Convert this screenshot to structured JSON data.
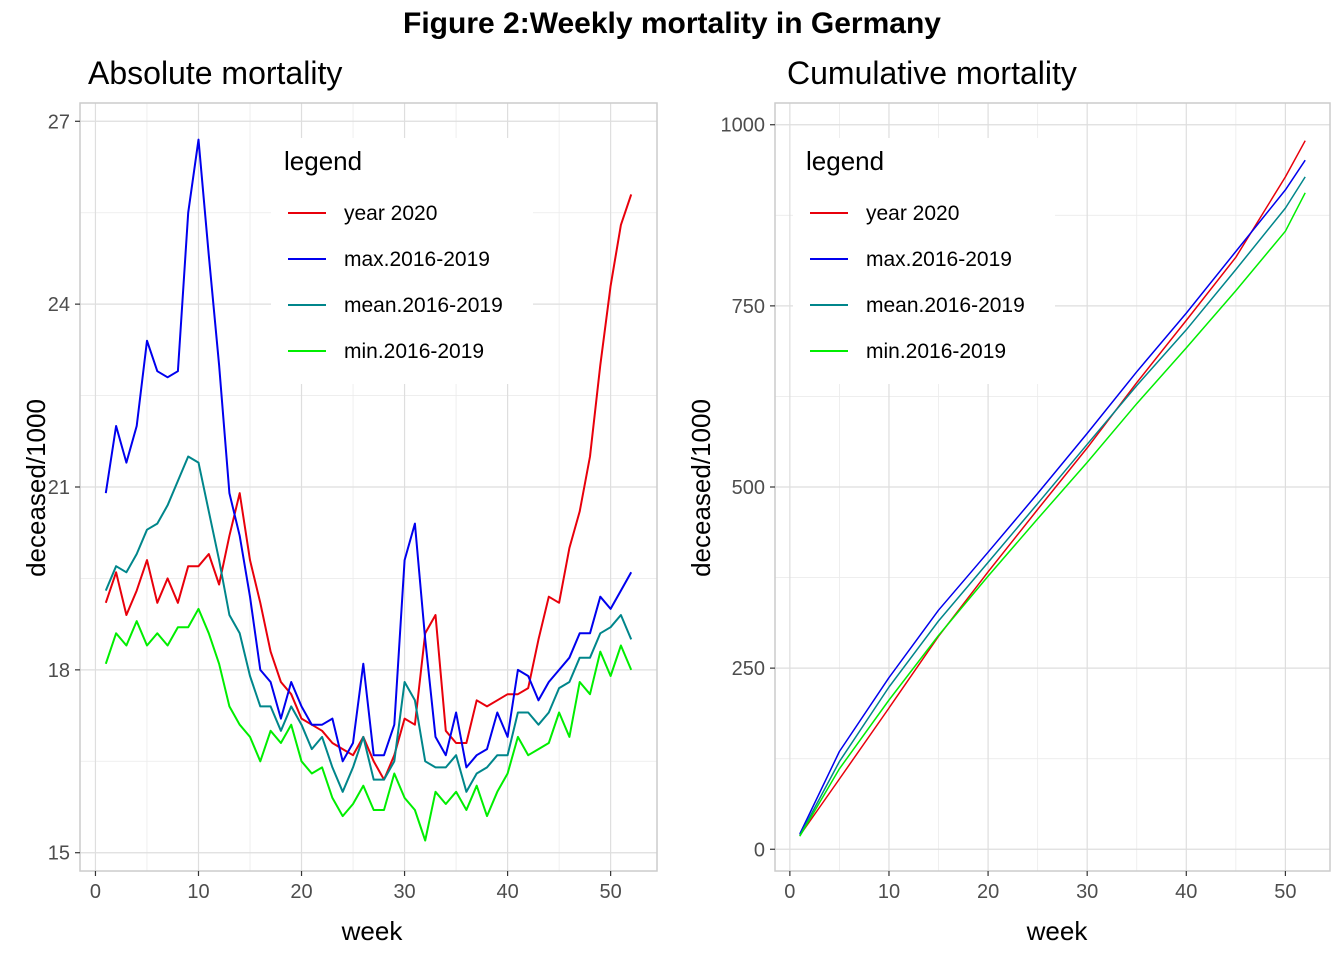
{
  "figure_title": "Figure 2:Weekly mortality in Germany",
  "chart_data": [
    {
      "type": "line",
      "title": "Absolute mortality",
      "xlabel": "week",
      "ylabel": "deceased/1000",
      "xlim": [
        -1.5,
        54.5
      ],
      "ylim": [
        14.7,
        27.3
      ],
      "xticks": [
        0,
        10,
        20,
        30,
        40,
        50
      ],
      "xtick_labels": [
        "0",
        "10",
        "20",
        "30",
        "40",
        "50"
      ],
      "yticks": [
        15,
        18,
        21,
        24,
        27
      ],
      "ytick_labels": [
        "15",
        "18",
        "21",
        "24",
        "27"
      ],
      "grid": true,
      "legend_title": "legend",
      "legend_position": "top-right",
      "x": [
        1,
        2,
        3,
        4,
        5,
        6,
        7,
        8,
        9,
        10,
        11,
        12,
        13,
        14,
        15,
        16,
        17,
        18,
        19,
        20,
        21,
        22,
        23,
        24,
        25,
        26,
        27,
        28,
        29,
        30,
        31,
        32,
        33,
        34,
        35,
        36,
        37,
        38,
        39,
        40,
        41,
        42,
        43,
        44,
        45,
        46,
        47,
        48,
        49,
        50,
        51,
        52
      ],
      "series": [
        {
          "name": "year 2020",
          "color": "#e8000b",
          "values": [
            19.1,
            19.6,
            18.9,
            19.3,
            19.8,
            19.1,
            19.5,
            19.1,
            19.7,
            19.7,
            19.9,
            19.4,
            20.2,
            20.9,
            19.8,
            19.1,
            18.3,
            17.8,
            17.6,
            17.2,
            17.1,
            17.0,
            16.8,
            16.7,
            16.6,
            16.9,
            16.5,
            16.2,
            16.6,
            17.2,
            17.1,
            18.6,
            18.9,
            17.0,
            16.8,
            16.8,
            17.5,
            17.4,
            17.5,
            17.6,
            17.6,
            17.7,
            18.5,
            19.2,
            19.1,
            20.0,
            20.6,
            21.5,
            23.0,
            24.3,
            25.3,
            25.8
          ]
        },
        {
          "name": "max.2016-2019",
          "color": "#0000ee",
          "values": [
            20.9,
            22.0,
            21.4,
            22.0,
            23.4,
            22.9,
            22.8,
            22.9,
            25.5,
            26.7,
            24.8,
            23.0,
            20.9,
            20.2,
            19.2,
            18.0,
            17.8,
            17.2,
            17.8,
            17.4,
            17.1,
            17.1,
            17.2,
            16.5,
            16.8,
            18.1,
            16.6,
            16.6,
            17.1,
            19.8,
            20.4,
            18.5,
            16.9,
            16.6,
            17.3,
            16.4,
            16.6,
            16.7,
            17.3,
            16.9,
            18.0,
            17.9,
            17.5,
            17.8,
            18.0,
            18.2,
            18.6,
            18.6,
            19.2,
            19.0,
            19.3,
            19.6
          ]
        },
        {
          "name": "mean.2016-2019",
          "color": "#00868b",
          "values": [
            19.3,
            19.7,
            19.6,
            19.9,
            20.3,
            20.4,
            20.7,
            21.1,
            21.5,
            21.4,
            20.6,
            19.8,
            18.9,
            18.6,
            17.9,
            17.4,
            17.4,
            17.0,
            17.4,
            17.1,
            16.7,
            16.9,
            16.4,
            16.0,
            16.4,
            16.9,
            16.2,
            16.2,
            16.5,
            17.8,
            17.5,
            16.5,
            16.4,
            16.4,
            16.6,
            16.0,
            16.3,
            16.4,
            16.6,
            16.6,
            17.3,
            17.3,
            17.1,
            17.3,
            17.7,
            17.8,
            18.2,
            18.2,
            18.6,
            18.7,
            18.9,
            18.5
          ]
        },
        {
          "name": "min.2016-2019",
          "color": "#00ee00",
          "values": [
            18.1,
            18.6,
            18.4,
            18.8,
            18.4,
            18.6,
            18.4,
            18.7,
            18.7,
            19.0,
            18.6,
            18.1,
            17.4,
            17.1,
            16.9,
            16.5,
            17.0,
            16.8,
            17.1,
            16.5,
            16.3,
            16.4,
            15.9,
            15.6,
            15.8,
            16.1,
            15.7,
            15.7,
            16.3,
            15.9,
            15.7,
            15.2,
            16.0,
            15.8,
            16.0,
            15.7,
            16.1,
            15.6,
            16.0,
            16.3,
            16.9,
            16.6,
            16.7,
            16.8,
            17.3,
            16.9,
            17.8,
            17.6,
            18.3,
            17.9,
            18.4,
            18.0
          ]
        }
      ]
    },
    {
      "type": "line",
      "title": "Cumulative mortality",
      "xlabel": "week",
      "ylabel": "deceased/1000",
      "xlim": [
        -1.5,
        54.5
      ],
      "ylim": [
        -30,
        1030
      ],
      "xticks": [
        0,
        10,
        20,
        30,
        40,
        50
      ],
      "xtick_labels": [
        "0",
        "10",
        "20",
        "30",
        "40",
        "50"
      ],
      "yticks": [
        0,
        250,
        500,
        750,
        1000
      ],
      "ytick_labels": [
        "0",
        "250",
        "500",
        "750",
        "1000"
      ],
      "grid": true,
      "legend_title": "legend",
      "legend_position": "top-left",
      "x": [
        1,
        5,
        10,
        15,
        20,
        25,
        30,
        35,
        40,
        45,
        50,
        52
      ],
      "series": [
        {
          "name": "year 2020",
          "color": "#e8000b",
          "values": [
            19,
            97,
            195,
            294,
            383,
            469,
            554,
            644,
            730,
            817,
            928,
            978
          ]
        },
        {
          "name": "max.2016-2019",
          "color": "#0000ee",
          "values": [
            21,
            135,
            237,
            330,
            410,
            491,
            574,
            659,
            740,
            825,
            910,
            951
          ]
        },
        {
          "name": "mean.2016-2019",
          "color": "#00868b",
          "values": [
            19,
            121,
            224,
            315,
            396,
            477,
            559,
            640,
            717,
            800,
            885,
            928
          ]
        },
        {
          "name": "min.2016-2019",
          "color": "#00ee00",
          "values": [
            18,
            111,
            206,
            295,
            377,
            456,
            534,
            615,
            692,
            771,
            853,
            906
          ]
        }
      ]
    }
  ]
}
